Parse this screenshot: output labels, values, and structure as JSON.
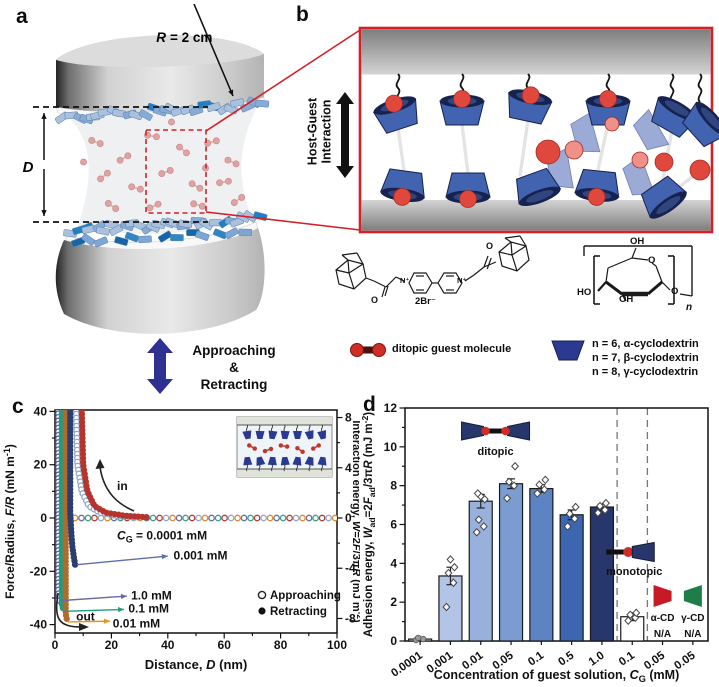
{
  "figure": {
    "colors": {
      "accent_red": "#d42027",
      "navy": "#2e3192",
      "cup_blue": "#4263b0",
      "cup_rim": "#16224f",
      "guest_red": "#e0483e",
      "guest_pink": "#ef9089",
      "alpha_cd_red": "#c61a27",
      "gamma_cd_green": "#1e7e45"
    }
  },
  "panels": {
    "a": "a",
    "b": "b",
    "c": "c",
    "d": "d"
  },
  "panel_a": {
    "radius_var": "R",
    "radius_eq": "= 2 cm",
    "distance_label": "D",
    "motion_lines": [
      "Approaching",
      "&",
      "Retracting"
    ]
  },
  "panel_b": {
    "host_guest_lines": [
      "Host-Guest",
      "Interaction"
    ],
    "guest_legend": "ditopic guest molecule",
    "cd_legend_lines": [
      "n = 6, α-cyclodextrin",
      "n = 7, β-cyclodextrin",
      "n = 8, γ-cyclodextrin"
    ],
    "structure_labels": {
      "o1": "O",
      "o2": "O",
      "n1": "N⁺",
      "n2": "N⁺",
      "counterion": "2Br⁻",
      "oh_top": "OH",
      "ring_o": "O",
      "ho": "HO",
      "oh_bot": "OH",
      "o_gly": "O",
      "repeat": "n"
    }
  },
  "chart_data": [
    {
      "type": "line",
      "panel": "c",
      "xlabel": "Distance, *D* (nm)",
      "ylabel_left": "Force/Radius, *F/R* (mN m^{-1})",
      "ylabel_right": "Interaction energy, *W*=2*F*/3π*R* (mJ m^{-2})",
      "xlim": [
        0,
        100
      ],
      "ylim": [
        -43,
        40.5
      ],
      "xticks": [
        0,
        20,
        40,
        60,
        80,
        100
      ],
      "yticks_left": [
        -40,
        -20,
        0,
        20,
        40
      ],
      "yticks_right": [
        -8,
        -4,
        0,
        4,
        8
      ],
      "right_axis_scale": 0.2122,
      "legend": [
        {
          "label": "Approaching",
          "marker": "open"
        },
        {
          "label": "Retracting",
          "marker": "filled"
        }
      ],
      "series": [
        {
          "name": "zero baseline all concentrations",
          "marker": "open",
          "colors": [
            "#b23b34",
            "#8fa8cc",
            "#e08a2a",
            "#6b6b9e",
            "#3aa08a"
          ],
          "path": [
            [
              2.5,
              0
            ],
            [
              100,
              0
            ]
          ],
          "spacing": 6.5
        },
        {
          "name": "0.0001 mM approaching",
          "marker": "open",
          "color": "#8fa8cc",
          "path": [
            [
              7.5,
              40.5
            ],
            [
              8,
              20
            ],
            [
              9.5,
              10
            ],
            [
              12,
              4.5
            ],
            [
              16,
              2
            ],
            [
              22,
              0.8
            ],
            [
              30,
              0.3
            ]
          ],
          "spacing": 4
        },
        {
          "name": "0.0001 mM retracting",
          "marker": "filled",
          "color": "#b5342e",
          "path": [
            [
              9.5,
              40.5
            ],
            [
              10,
              20
            ],
            [
              11.5,
              10
            ],
            [
              14,
              4.5
            ],
            [
              18,
              2
            ],
            [
              25,
              0.8
            ],
            [
              33,
              0.3
            ]
          ],
          "spacing": 4
        },
        {
          "name": "1.0 mM retracting",
          "marker": "open",
          "color": "#5c5c91",
          "path": [
            [
              1.2,
              40.5
            ],
            [
              1.2,
              -28
            ],
            [
              1.8,
              -31.5
            ]
          ],
          "spacing": 3.6
        },
        {
          "name": "0.1 mM retracting",
          "marker": "filled",
          "color": "#1f9d80",
          "path": [
            [
              2.4,
              40.5
            ],
            [
              2.4,
              -32
            ],
            [
              3,
              -35
            ]
          ],
          "spacing": 3.6
        },
        {
          "name": "0.01 mM retracting",
          "marker": "filled",
          "color": "#b06a2a",
          "path": [
            [
              3.8,
              40.5
            ],
            [
              3.8,
              -36
            ],
            [
              4.4,
              -39
            ]
          ],
          "spacing": 3.6
        },
        {
          "name": "0.001 mM retracting",
          "marker": "filled",
          "color": "#2c3e70",
          "path": [
            [
              5.4,
              40.5
            ],
            [
              5.4,
              2
            ],
            [
              5.8,
              -6
            ],
            [
              6.2,
              -11
            ],
            [
              6.8,
              -15.5
            ],
            [
              7.2,
              -18
            ]
          ],
          "spacing": 3.6
        }
      ],
      "annotations": [
        {
          "text": "*C*_{G} = 0.0001 mM",
          "x": 22,
          "y": -6.5
        },
        {
          "text": "0.001 mM",
          "x": 42,
          "y": -14
        },
        {
          "text": "1.0 mM",
          "x": 27,
          "y": -29
        },
        {
          "text": "0.1 mM",
          "x": 26,
          "y": -34
        },
        {
          "text": "0.01 mM",
          "x": 20.5,
          "y": -39.5
        },
        {
          "text": "in",
          "x": 22,
          "y": 12
        },
        {
          "text": "out",
          "x": 7.5,
          "y": -37
        }
      ],
      "arrows": [
        {
          "x1": 7.8,
          "y1": -17.5,
          "x2": 40,
          "y2": -14.3,
          "color": "#5b6fae"
        },
        {
          "x1": 2.0,
          "y1": -31.0,
          "x2": 25.5,
          "y2": -29.3,
          "color": "#6b6b9e"
        },
        {
          "x1": 3.2,
          "y1": -35.0,
          "x2": 24.5,
          "y2": -34.3,
          "color": "#1f9d80"
        },
        {
          "x1": 4.6,
          "y1": -39.0,
          "x2": 19.5,
          "y2": -38.7,
          "color": "#e8941a"
        }
      ]
    },
    {
      "type": "bar",
      "panel": "d",
      "xlabel": "Concentration of guest solution, *C*_{G} (mM)",
      "ylabel": "Adhesion energy, *W*_{ad}=2*F*_{ad}/3π*R* (mJ m^{-2})",
      "ylim": [
        0,
        12
      ],
      "yticks": [
        0,
        2,
        4,
        6,
        8,
        10,
        12
      ],
      "categories": [
        "0.0001",
        "0.001",
        "0.01",
        "0.05",
        "0.1",
        "0.5",
        "1.0",
        "0.1",
        "0.05",
        "0.05"
      ],
      "values": [
        0.1,
        3.35,
        7.2,
        8.1,
        7.85,
        6.5,
        6.9,
        1.25,
        null,
        null
      ],
      "errors": [
        0.05,
        0.45,
        0.35,
        0.25,
        0.2,
        0.25,
        0.15,
        0.2,
        null,
        null
      ],
      "bar_colors": [
        "#d8dff0",
        "#b3c4e6",
        "#97b1dc",
        "#7b9cd1",
        "#5c84c4",
        "#3c66b0",
        "#27366b",
        "#ffffff",
        null,
        null
      ],
      "scatter": [
        [
          0.05,
          0.1,
          0.16
        ],
        [
          1.75,
          3.0,
          3.5,
          3.8,
          4.2
        ],
        [
          5.6,
          5.9,
          6.25,
          7.3,
          7.45,
          7.6
        ],
        [
          7.35,
          8.0,
          8.2,
          9.0
        ],
        [
          7.6,
          7.8,
          8.05,
          8.3
        ],
        [
          5.9,
          6.3,
          6.55,
          6.9
        ],
        [
          6.6,
          6.75,
          6.95,
          7.1
        ],
        [
          1.05,
          1.2,
          1.35,
          1.45
        ],
        [],
        []
      ],
      "separators_after": [
        6,
        7
      ],
      "group_labels": [
        {
          "text": "ditopic",
          "icon": "ditopic"
        },
        {
          "text": "monotopic",
          "icon": "monotopic"
        }
      ],
      "na_items": [
        {
          "label": "α-CD",
          "na": "N/A",
          "color": "#c61a27"
        },
        {
          "label": "γ-CD",
          "na": "N/A",
          "color": "#1e7e45"
        }
      ]
    }
  ]
}
